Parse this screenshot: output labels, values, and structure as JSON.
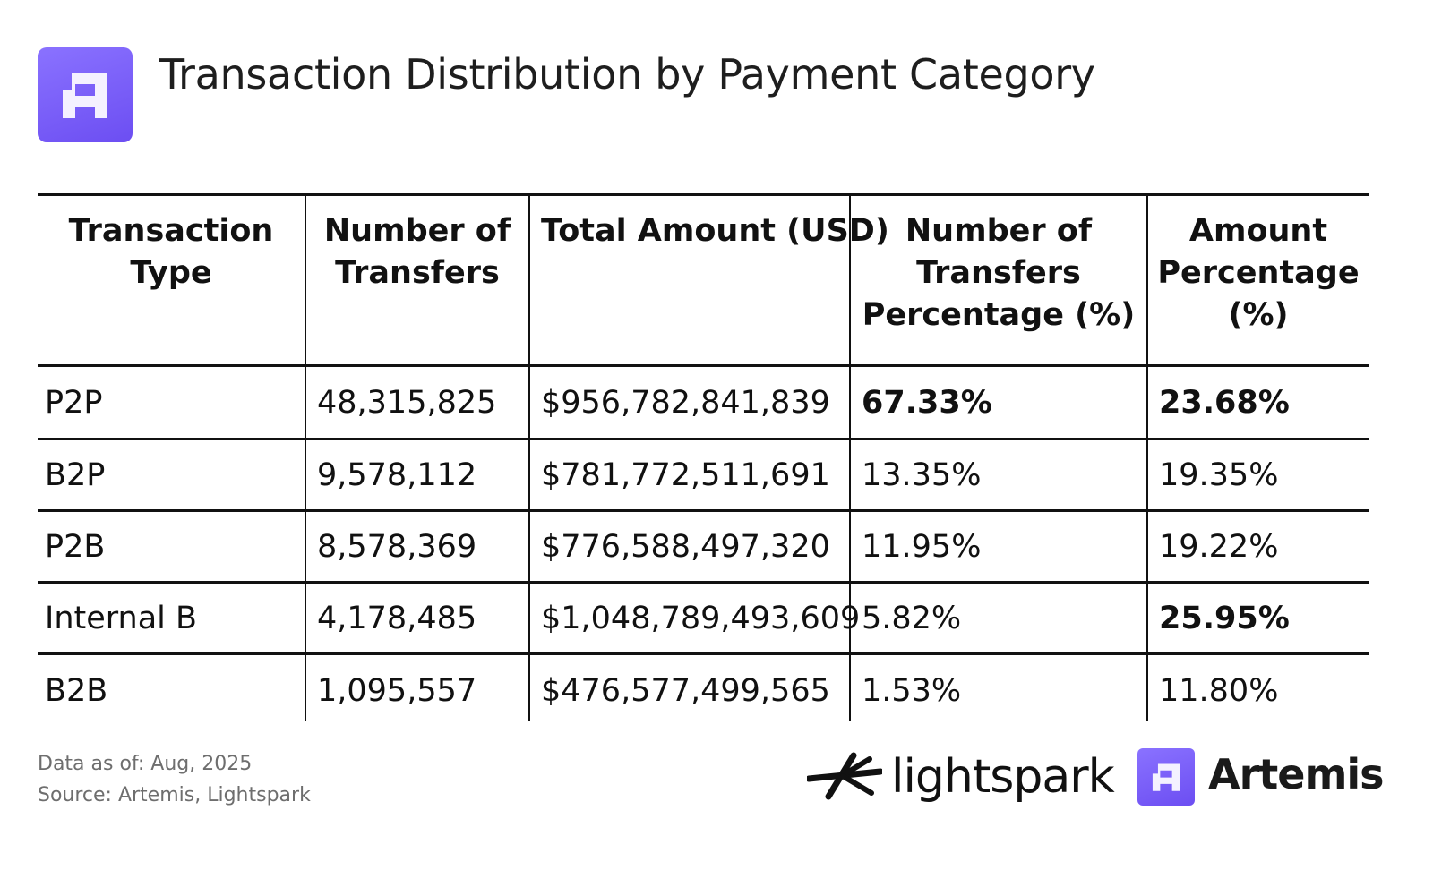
{
  "title": "Transaction Distribution by Payment Category",
  "brand_color": "#7357f7",
  "icons": {
    "header_logo": "artemis-logo-icon",
    "lightspark_logo": "lightspark-logo-icon",
    "artemis_logo": "artemis-logo-icon"
  },
  "chart_data": {
    "type": "table",
    "columns": [
      "Transaction Type",
      "Number of Transfers",
      "Total Amount (USD)",
      "Number of Transfers Percentage (%)",
      "Amount Percentage (%)"
    ],
    "rows": [
      {
        "type": "P2P",
        "transfers": "48,315,825",
        "amount": "$956,782,841,839",
        "transfers_pct": "67.33%",
        "amount_pct": "23.68%",
        "bold_transfers_pct": true,
        "bold_amount_pct": true
      },
      {
        "type": "B2P",
        "transfers": "9,578,112",
        "amount": "$781,772,511,691",
        "transfers_pct": "13.35%",
        "amount_pct": "19.35%",
        "bold_transfers_pct": false,
        "bold_amount_pct": false
      },
      {
        "type": "P2B",
        "transfers": "8,578,369",
        "amount": "$776,588,497,320",
        "transfers_pct": "11.95%",
        "amount_pct": "19.22%",
        "bold_transfers_pct": false,
        "bold_amount_pct": false
      },
      {
        "type": "Internal B",
        "transfers": "4,178,485",
        "amount": "$1,048,789,493,609",
        "transfers_pct": "5.82%",
        "amount_pct": "25.95%",
        "bold_transfers_pct": false,
        "bold_amount_pct": true
      },
      {
        "type": "B2B",
        "transfers": "1,095,557",
        "amount": "$476,577,499,565",
        "transfers_pct": "1.53%",
        "amount_pct": "11.80%",
        "bold_transfers_pct": false,
        "bold_amount_pct": false
      }
    ]
  },
  "footer": {
    "data_as_of": "Data as of: Aug, 2025",
    "source": "Source: Artemis, Lightspark",
    "lightspark_label": "lightspark",
    "artemis_label": "Artemis"
  }
}
